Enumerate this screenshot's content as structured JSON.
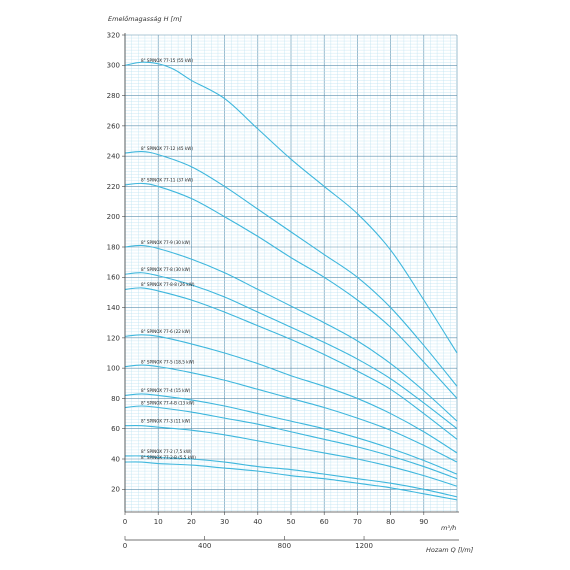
{
  "chart_data": {
    "type": "line",
    "ylabel": "Emelőmagasság  H [m]",
    "xlabel_top_unit": "m³/h",
    "xlabel_bottom": "Hozam Q [l/m]",
    "ylim": [
      5,
      320
    ],
    "xlim": [
      0,
      100
    ],
    "x2lim": [
      0,
      1666.7
    ],
    "y_ticks": [
      20,
      40,
      60,
      80,
      100,
      120,
      140,
      160,
      180,
      200,
      220,
      240,
      260,
      280,
      300,
      320
    ],
    "x_ticks": [
      0,
      10,
      20,
      30,
      40,
      50,
      60,
      70,
      80,
      90
    ],
    "x2_ticks": [
      0,
      400,
      800,
      1200
    ],
    "grid": true,
    "colors": {
      "curve": "#3fb7dd",
      "grid_minor": "#bfe3f1",
      "grid_major": "#5a8fae",
      "axis": "#444444"
    },
    "series": [
      {
        "name": "8\" SPINOX 77-15 (55 kW)",
        "x": [
          0,
          5,
          10,
          15,
          20,
          30,
          40,
          50,
          60,
          70,
          80,
          90,
          100
        ],
        "y": [
          300,
          302,
          301,
          297,
          290,
          278,
          258,
          238,
          220,
          202,
          178,
          145,
          110
        ]
      },
      {
        "name": "8\" SPINOX 77-12 (45 kW)",
        "x": [
          0,
          5,
          10,
          20,
          30,
          40,
          50,
          60,
          70,
          80,
          90,
          100
        ],
        "y": [
          242,
          243,
          241,
          233,
          220,
          205,
          190,
          175,
          160,
          140,
          115,
          88
        ]
      },
      {
        "name": "8\" SPINOX 77-11 (37 kW)",
        "x": [
          0,
          5,
          10,
          20,
          30,
          40,
          50,
          60,
          70,
          80,
          90,
          100
        ],
        "y": [
          221,
          222,
          220,
          212,
          200,
          187,
          173,
          160,
          145,
          127,
          104,
          80
        ]
      },
      {
        "name": "8\" SPINOX 77-9 (30 kW)",
        "x": [
          0,
          5,
          10,
          20,
          30,
          40,
          50,
          60,
          70,
          80,
          90,
          100
        ],
        "y": [
          180,
          181,
          179,
          172,
          163,
          152,
          141,
          130,
          118,
          103,
          85,
          65
        ]
      },
      {
        "name": "8\" SPINOX 77-8 (30 kW)",
        "x": [
          0,
          5,
          10,
          20,
          30,
          40,
          50,
          60,
          70,
          80,
          90,
          100
        ],
        "y": [
          162,
          163,
          161,
          155,
          147,
          137,
          127,
          117,
          106,
          93,
          77,
          60
        ]
      },
      {
        "name": "8\" SPINOX 77-8-8 (26 kW)",
        "x": [
          0,
          5,
          10,
          20,
          30,
          40,
          50,
          60,
          70,
          80,
          90,
          100
        ],
        "y": [
          152,
          153,
          151,
          145,
          137,
          128,
          119,
          109,
          98,
          86,
          70,
          53
        ]
      },
      {
        "name": "8\" SPINOX 77-6 (22 kW)",
        "x": [
          0,
          5,
          10,
          20,
          30,
          40,
          50,
          60,
          70,
          80,
          90,
          100
        ],
        "y": [
          121,
          122,
          121,
          116,
          110,
          103,
          95,
          88,
          80,
          70,
          58,
          44
        ]
      },
      {
        "name": "8\" SPINOX 77-5 (18,5 kW)",
        "x": [
          0,
          5,
          10,
          20,
          30,
          40,
          50,
          60,
          70,
          80,
          90,
          100
        ],
        "y": [
          101,
          102,
          101,
          97,
          92,
          86,
          80,
          74,
          67,
          59,
          49,
          38
        ]
      },
      {
        "name": "8\" SPINOX 77-4 (15 kW)",
        "x": [
          0,
          5,
          10,
          20,
          30,
          40,
          50,
          60,
          70,
          80,
          90,
          100
        ],
        "y": [
          82,
          83,
          82,
          79,
          75,
          70,
          65,
          60,
          54,
          47,
          39,
          30
        ]
      },
      {
        "name": "8\" SPINOX 77-4-B (13 kW)",
        "x": [
          0,
          5,
          10,
          20,
          30,
          40,
          50,
          60,
          70,
          80,
          90,
          100
        ],
        "y": [
          74,
          75,
          74,
          71,
          67,
          63,
          58,
          53,
          48,
          42,
          35,
          27
        ]
      },
      {
        "name": "8\" SPINOX 77-3 (11 kW)",
        "x": [
          0,
          5,
          10,
          20,
          30,
          40,
          50,
          60,
          70,
          80,
          90,
          100
        ],
        "y": [
          62,
          62,
          61,
          59,
          56,
          52,
          48,
          44,
          40,
          35,
          29,
          22
        ]
      },
      {
        "name": "8\" SPINOX 77-2 (7,5 kW)",
        "x": [
          0,
          5,
          10,
          20,
          30,
          40,
          50,
          60,
          70,
          80,
          90,
          100
        ],
        "y": [
          42,
          42,
          41,
          40,
          38,
          35,
          33,
          30,
          27,
          24,
          20,
          15
        ]
      },
      {
        "name": "8\" SPINOX 77-2-B (5,5 kW)",
        "x": [
          0,
          5,
          10,
          20,
          30,
          40,
          50,
          60,
          70,
          80,
          90,
          100
        ],
        "y": [
          38,
          38,
          37,
          36,
          34,
          32,
          29,
          27,
          24,
          21,
          17,
          13
        ]
      }
    ]
  }
}
